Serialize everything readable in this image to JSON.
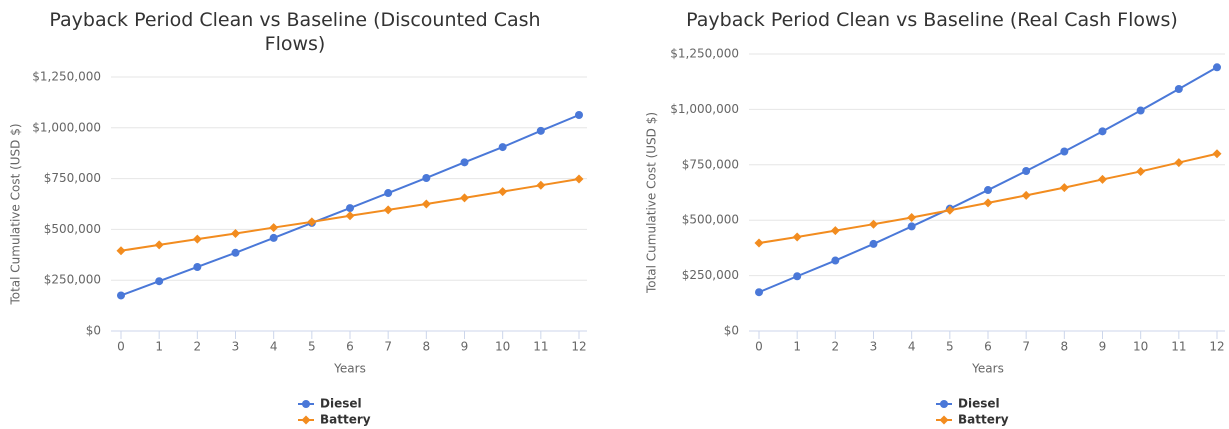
{
  "chart_data": [
    {
      "type": "line",
      "title": "Payback Period Clean vs Baseline (Discounted Cash Flows)",
      "x_label": "Years",
      "y_label": "Total Cumulative Cost (USD $)",
      "x": [
        0,
        1,
        2,
        3,
        4,
        5,
        6,
        7,
        8,
        9,
        10,
        11,
        12
      ],
      "xlim": [
        0,
        12
      ],
      "xticks": [
        0,
        1,
        2,
        3,
        4,
        5,
        6,
        7,
        8,
        9,
        10,
        11,
        12
      ],
      "ylim": [
        0,
        1250000
      ],
      "yticks": [
        {
          "value": 0,
          "label": "$0"
        },
        {
          "value": 250000,
          "label": "$250,000"
        },
        {
          "value": 500000,
          "label": "$500,000"
        },
        {
          "value": 750000,
          "label": "$750,000"
        },
        {
          "value": 1000000,
          "label": "$1,000,000"
        },
        {
          "value": 1250000,
          "label": "$1,250,000"
        }
      ],
      "grid": true,
      "legend": "bottom",
      "series": [
        {
          "name": "Diesel",
          "color": "#4a78d8",
          "marker": "circle",
          "values": [
            175000,
            245000,
            315000,
            385000,
            458000,
            532000,
            605000,
            679000,
            753000,
            830000,
            905000,
            985000,
            1063000
          ]
        },
        {
          "name": "Battery",
          "color": "#f28c1f",
          "marker": "diamond",
          "values": [
            395000,
            424000,
            452000,
            480000,
            509000,
            537000,
            567000,
            596000,
            625000,
            655000,
            686000,
            717000,
            748000
          ]
        }
      ]
    },
    {
      "type": "line",
      "title": "Payback Period Clean vs Baseline (Real Cash Flows)",
      "x_label": "Years",
      "y_label": "Total Cumulative Cost (USD $)",
      "x": [
        0,
        1,
        2,
        3,
        4,
        5,
        6,
        7,
        8,
        9,
        10,
        11,
        12
      ],
      "xlim": [
        0,
        12
      ],
      "xticks": [
        0,
        1,
        2,
        3,
        4,
        5,
        6,
        7,
        8,
        9,
        10,
        11,
        12
      ],
      "ylim": [
        0,
        1250000
      ],
      "yticks": [
        {
          "value": 0,
          "label": "$0"
        },
        {
          "value": 250000,
          "label": "$250,000"
        },
        {
          "value": 500000,
          "label": "$500,000"
        },
        {
          "value": 750000,
          "label": "$750,000"
        },
        {
          "value": 1000000,
          "label": "$1,000,000"
        },
        {
          "value": 1250000,
          "label": "$1,250,000"
        }
      ],
      "grid": true,
      "legend": "bottom",
      "series": [
        {
          "name": "Diesel",
          "color": "#4a78d8",
          "marker": "circle",
          "values": [
            175000,
            247000,
            318000,
            393000,
            472000,
            552000,
            636000,
            722000,
            810000,
            901000,
            995000,
            1092000,
            1190000
          ]
        },
        {
          "name": "Battery",
          "color": "#f28c1f",
          "marker": "diamond",
          "values": [
            397000,
            424000,
            453000,
            482000,
            512000,
            545000,
            578000,
            612000,
            647000,
            684000,
            720000,
            760000,
            800000
          ]
        }
      ]
    }
  ]
}
